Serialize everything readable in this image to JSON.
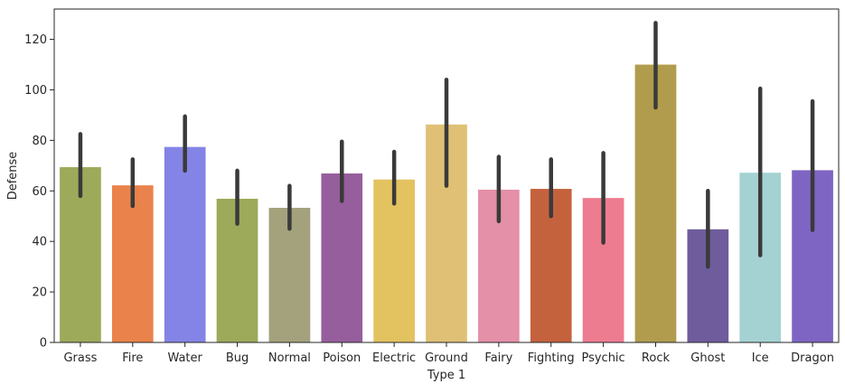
{
  "chart_data": {
    "type": "bar",
    "xlabel": "Type 1",
    "ylabel": "Defense",
    "ylim": [
      0,
      132
    ],
    "yticks": [
      0,
      20,
      40,
      60,
      80,
      100,
      120
    ],
    "grid": false,
    "error_bars": true,
    "categories": [
      "Grass",
      "Fire",
      "Water",
      "Bug",
      "Normal",
      "Poison",
      "Electric",
      "Ground",
      "Fairy",
      "Fighting",
      "Psychic",
      "Rock",
      "Ghost",
      "Ice",
      "Dragon"
    ],
    "values": [
      69.5,
      62.3,
      77.5,
      57.0,
      53.4,
      67.0,
      64.6,
      86.4,
      60.6,
      60.9,
      57.3,
      110.1,
      44.9,
      67.3,
      68.3
    ],
    "error_low": [
      58,
      54,
      68,
      47,
      45,
      56,
      55,
      62,
      48,
      50,
      39.5,
      93,
      30,
      34.5,
      44.5
    ],
    "error_high": [
      82.5,
      72.5,
      89.5,
      68,
      62,
      79.5,
      75.5,
      104,
      73.5,
      72.5,
      75,
      126.5,
      60,
      100.5,
      95.5
    ],
    "colors": [
      "#9caa5a",
      "#ea834b",
      "#8484e6",
      "#9caa5a",
      "#a3a27d",
      "#965e9c",
      "#e3c260",
      "#dfc074",
      "#e390a8",
      "#c5623e",
      "#ee7c90",
      "#b09c4c",
      "#6e5c9c",
      "#a4d2d2",
      "#7e65c4"
    ]
  }
}
